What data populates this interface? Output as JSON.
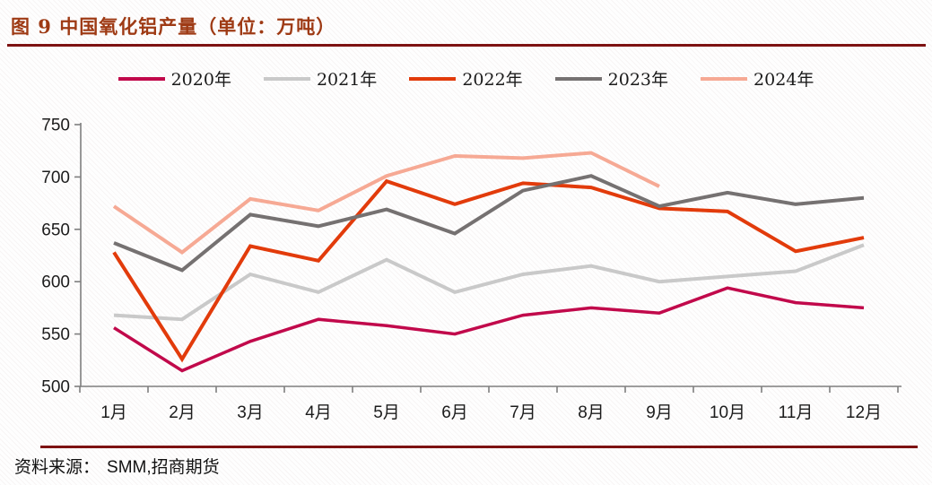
{
  "header": {
    "title": "图 9 中国氧化铝产量（单位：万吨）"
  },
  "source": {
    "label": "资料来源：",
    "value": "SMM,招商期货"
  },
  "colors": {
    "title_text": "#9e3a14",
    "rule": "#7d1212",
    "axis": "#7f7f7f",
    "tick_label": "#1c1c1c"
  },
  "chart_data": {
    "type": "line",
    "title": "中国氧化铝产量（单位：万吨）",
    "xlabel": "",
    "ylabel": "",
    "ylim": [
      500,
      750
    ],
    "ytick_step": 50,
    "grid": false,
    "legend_position": "top",
    "categories": [
      "1月",
      "2月",
      "3月",
      "4月",
      "5月",
      "6月",
      "7月",
      "8月",
      "9月",
      "10月",
      "11月",
      "12月"
    ],
    "series": [
      {
        "name": "2020年",
        "color": "#c1094b",
        "width": 3.5,
        "values": [
          556,
          515,
          543,
          564,
          558,
          550,
          568,
          575,
          570,
          594,
          580,
          575
        ]
      },
      {
        "name": "2021年",
        "color": "#c9c9c9",
        "width": 4,
        "values": [
          568,
          564,
          607,
          590,
          621,
          590,
          607,
          615,
          600,
          605,
          610,
          635
        ]
      },
      {
        "name": "2022年",
        "color": "#e23b0b",
        "width": 4,
        "values": [
          628,
          526,
          634,
          620,
          696,
          674,
          694,
          690,
          670,
          667,
          629,
          642
        ]
      },
      {
        "name": "2023年",
        "color": "#757171",
        "width": 4,
        "values": [
          637,
          611,
          664,
          653,
          669,
          646,
          687,
          701,
          672,
          685,
          674,
          680
        ]
      },
      {
        "name": "2024年",
        "color": "#f6a994",
        "width": 4,
        "values": [
          672,
          628,
          679,
          668,
          701,
          720,
          718,
          723,
          691
        ]
      }
    ]
  }
}
